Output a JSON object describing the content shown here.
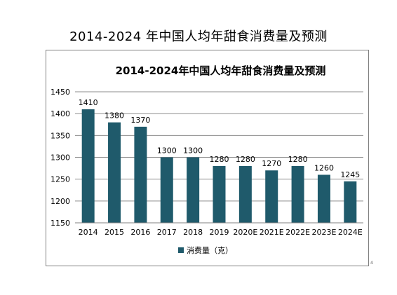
{
  "page": {
    "title": "2014-2024 年中国人均年甜食消费量及预测",
    "corner_mark": "4"
  },
  "chart_data": {
    "type": "bar",
    "title": "2014-2024年中国人均年甜食消费量及预测",
    "categories": [
      "2014",
      "2015",
      "2016",
      "2017",
      "2018",
      "2019",
      "2020E",
      "2021E",
      "2022E",
      "2023E",
      "2024E"
    ],
    "series": [
      {
        "name": "消费量（克）",
        "values": [
          1410,
          1380,
          1370,
          1300,
          1300,
          1280,
          1280,
          1270,
          1280,
          1260,
          1245
        ]
      }
    ],
    "ylim": [
      1150,
      1450
    ],
    "yticks": [
      1150,
      1200,
      1250,
      1300,
      1350,
      1400,
      1450
    ],
    "grid": true,
    "legend": "bottom",
    "colors": {
      "bar": "#1f5a6b",
      "grid": "#8c8c8c",
      "axis": "#808080"
    }
  }
}
